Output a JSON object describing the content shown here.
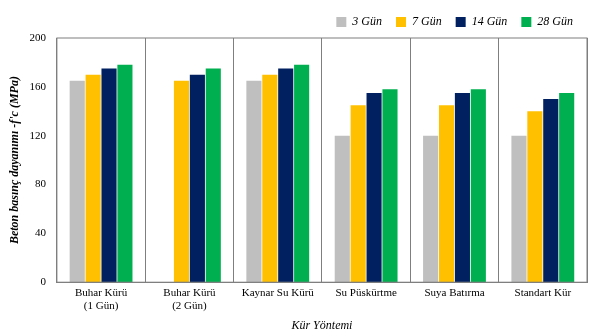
{
  "chart_data": {
    "type": "bar",
    "x_label": "Kür Yöntemi",
    "y_label": "Beton basınç dayanımı -f'c (MPa)",
    "categories": [
      [
        "Buhar Kürü",
        "(1 Gün)"
      ],
      [
        "Buhar Kürü",
        "(2 Gün)"
      ],
      "Kaynar Su Kürü",
      "Su Püskürtme",
      "Suya Batırma",
      "Standart Kür"
    ],
    "series": [
      {
        "name": "3 Gün",
        "color": "#bfbfbf",
        "values": [
          165,
          null,
          165,
          120,
          120,
          120
        ]
      },
      {
        "name": "7 Gün",
        "color": "#ffc000",
        "values": [
          170,
          165,
          170,
          145,
          145,
          140
        ]
      },
      {
        "name": "14 Gün",
        "color": "#002060",
        "values": [
          175,
          170,
          175,
          155,
          155,
          150
        ]
      },
      {
        "name": "28 Gün",
        "color": "#00b050",
        "values": [
          178,
          175,
          178,
          158,
          158,
          155
        ]
      }
    ],
    "ylim": [
      0,
      200
    ],
    "yticks": [
      0,
      40,
      80,
      120,
      160,
      200
    ],
    "grid": "x",
    "legend": "top"
  }
}
